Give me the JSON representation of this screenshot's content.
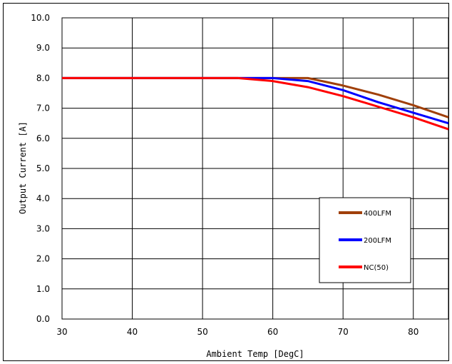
{
  "chart_data": {
    "type": "line",
    "title": "",
    "xlabel": "Ambient Temp [DegC]",
    "ylabel": "Output Current [A]",
    "xlim": [
      30,
      85
    ],
    "ylim": [
      0,
      10
    ],
    "x_ticks": [
      "30",
      "40",
      "50",
      "60",
      "70",
      "80"
    ],
    "y_ticks": [
      "0.0",
      "1.0",
      "2.0",
      "3.0",
      "4.0",
      "5.0",
      "6.0",
      "7.0",
      "8.0",
      "9.0",
      "10.0"
    ],
    "grid": true,
    "legend_position": "right",
    "series": [
      {
        "name": "400LFM",
        "color": "#a0400a",
        "x": [
          30,
          55,
          60,
          65,
          70,
          75,
          80,
          85
        ],
        "y": [
          8.0,
          8.0,
          8.0,
          8.0,
          7.75,
          7.45,
          7.1,
          6.7
        ]
      },
      {
        "name": "200LFM",
        "color": "#0000ff",
        "x": [
          30,
          55,
          60,
          65,
          70,
          75,
          80,
          85
        ],
        "y": [
          8.0,
          8.0,
          8.0,
          7.9,
          7.6,
          7.2,
          6.85,
          6.5
        ]
      },
      {
        "name": "NC(50)",
        "color": "#ff0000",
        "x": [
          30,
          55,
          60,
          65,
          70,
          75,
          80,
          85
        ],
        "y": [
          8.0,
          8.0,
          7.9,
          7.7,
          7.4,
          7.05,
          6.7,
          6.3
        ]
      }
    ]
  }
}
